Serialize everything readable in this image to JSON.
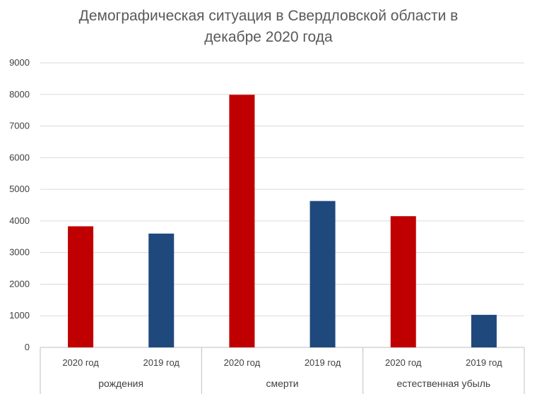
{
  "chart_data": {
    "type": "bar",
    "title_lines": [
      "Демографическая ситуация в Свердловской области в",
      "декабре 2020 года"
    ],
    "groups": [
      {
        "label": "рождения",
        "bars": [
          {
            "label": "2020 год",
            "value": 3830,
            "color": "#C00000"
          },
          {
            "label": "2019 год",
            "value": 3600,
            "color": "#1F497D"
          }
        ]
      },
      {
        "label": "смерти",
        "bars": [
          {
            "label": "2020 год",
            "value": 7990,
            "color": "#C00000"
          },
          {
            "label": "2019 год",
            "value": 4630,
            "color": "#1F497D"
          }
        ]
      },
      {
        "label": "естественная убыль",
        "bars": [
          {
            "label": "2020 год",
            "value": 4150,
            "color": "#C00000"
          },
          {
            "label": "2019 год",
            "value": 1030,
            "color": "#1F497D"
          }
        ]
      }
    ],
    "ylim": [
      0,
      9000
    ],
    "yticks": [
      0,
      1000,
      2000,
      3000,
      4000,
      5000,
      6000,
      7000,
      8000,
      9000
    ],
    "grid": true,
    "legend": "none"
  }
}
